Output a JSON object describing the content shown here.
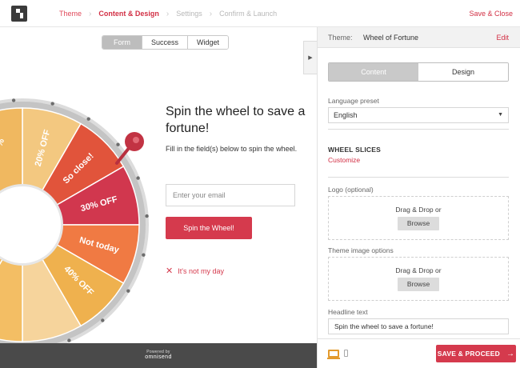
{
  "header": {
    "steps": [
      {
        "label": "Theme",
        "state": "done"
      },
      {
        "label": "Content & Design",
        "state": "active"
      },
      {
        "label": "Settings",
        "state": "inactive"
      },
      {
        "label": "Confirm & Launch",
        "state": "inactive"
      }
    ],
    "save_close": "Save & Close"
  },
  "preview": {
    "tabs": [
      {
        "label": "Form",
        "active": true
      },
      {
        "label": "Success",
        "active": false
      },
      {
        "label": "Widget",
        "active": false
      }
    ],
    "wheel": {
      "slices": [
        {
          "label": "20% OFF",
          "color": "#f3c880"
        },
        {
          "label": "So close!",
          "color": "#e1543b"
        },
        {
          "label": "30% OFF",
          "color": "#d1374e"
        },
        {
          "label": "Not today",
          "color": "#f07a43"
        },
        {
          "label": "40% OFF",
          "color": "#efb14e"
        },
        {
          "label": "",
          "color": "#f6d49c"
        },
        {
          "label": "",
          "color": "#f3be64"
        }
      ],
      "left_partial_label": "%"
    },
    "headline": "Spin the wheel to save a fortune!",
    "subtext": "Fill in the field(s) below to spin the wheel.",
    "email_placeholder": "Enter your email",
    "spin_button": "Spin the Wheel!",
    "dismiss_link": "It's not my day",
    "powered_by": "Powered by",
    "brand": "omnisend"
  },
  "panel": {
    "theme_label": "Theme:",
    "theme_name": "Wheel of Fortune",
    "edit": "Edit",
    "tabs": [
      {
        "label": "Content",
        "active": true
      },
      {
        "label": "Design",
        "active": false
      }
    ],
    "language_label": "Language preset",
    "language_value": "English",
    "wheel_slices_title": "WHEEL SLICES",
    "customize": "Customize",
    "logo_label": "Logo (optional)",
    "dropzone_text": "Drag & Drop or",
    "browse": "Browse",
    "theme_image_label": "Theme image options",
    "headline_label": "Headline text",
    "headline_value": "Spin the wheel to save a fortune!",
    "save_proceed": "SAVE & PROCEED"
  },
  "colors": {
    "accent": "#d22f44",
    "button": "#d53a4d",
    "footer_dark": "#4a4a4a"
  }
}
